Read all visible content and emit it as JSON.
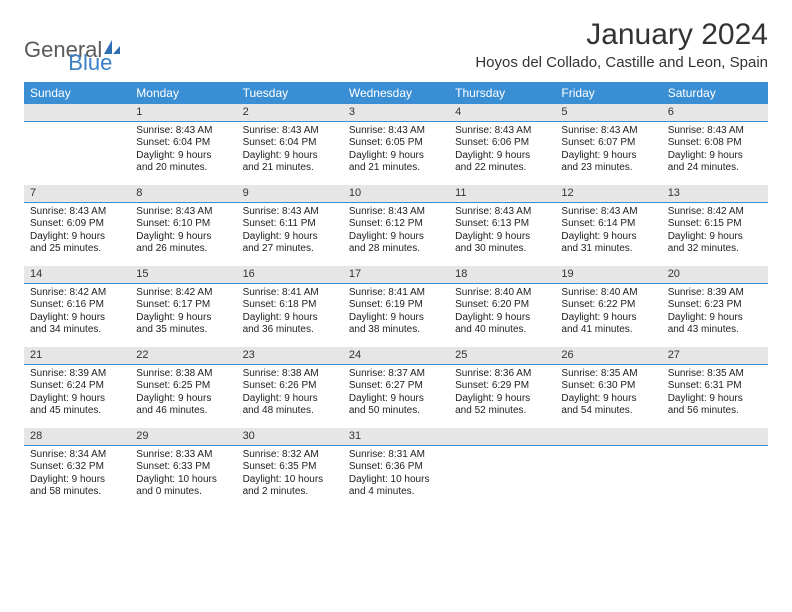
{
  "logo": {
    "text1": "General",
    "text2": "Blue"
  },
  "title": "January 2024",
  "location": "Hoyos del Collado, Castille and Leon, Spain",
  "colors": {
    "header_bg": "#3a8fd4",
    "header_text": "#ffffff",
    "daynum_bg": "#e6e6e6",
    "daynum_border": "#3a8fd4",
    "logo_gray": "#5a5a5a",
    "logo_blue": "#3a7fc4",
    "page_bg": "#ffffff"
  },
  "weekdays": [
    "Sunday",
    "Monday",
    "Tuesday",
    "Wednesday",
    "Thursday",
    "Friday",
    "Saturday"
  ],
  "weeks": [
    [
      null,
      {
        "n": "1",
        "sr": "8:43 AM",
        "ss": "6:04 PM",
        "dl": "9 hours and 20 minutes."
      },
      {
        "n": "2",
        "sr": "8:43 AM",
        "ss": "6:04 PM",
        "dl": "9 hours and 21 minutes."
      },
      {
        "n": "3",
        "sr": "8:43 AM",
        "ss": "6:05 PM",
        "dl": "9 hours and 21 minutes."
      },
      {
        "n": "4",
        "sr": "8:43 AM",
        "ss": "6:06 PM",
        "dl": "9 hours and 22 minutes."
      },
      {
        "n": "5",
        "sr": "8:43 AM",
        "ss": "6:07 PM",
        "dl": "9 hours and 23 minutes."
      },
      {
        "n": "6",
        "sr": "8:43 AM",
        "ss": "6:08 PM",
        "dl": "9 hours and 24 minutes."
      }
    ],
    [
      {
        "n": "7",
        "sr": "8:43 AM",
        "ss": "6:09 PM",
        "dl": "9 hours and 25 minutes."
      },
      {
        "n": "8",
        "sr": "8:43 AM",
        "ss": "6:10 PM",
        "dl": "9 hours and 26 minutes."
      },
      {
        "n": "9",
        "sr": "8:43 AM",
        "ss": "6:11 PM",
        "dl": "9 hours and 27 minutes."
      },
      {
        "n": "10",
        "sr": "8:43 AM",
        "ss": "6:12 PM",
        "dl": "9 hours and 28 minutes."
      },
      {
        "n": "11",
        "sr": "8:43 AM",
        "ss": "6:13 PM",
        "dl": "9 hours and 30 minutes."
      },
      {
        "n": "12",
        "sr": "8:43 AM",
        "ss": "6:14 PM",
        "dl": "9 hours and 31 minutes."
      },
      {
        "n": "13",
        "sr": "8:42 AM",
        "ss": "6:15 PM",
        "dl": "9 hours and 32 minutes."
      }
    ],
    [
      {
        "n": "14",
        "sr": "8:42 AM",
        "ss": "6:16 PM",
        "dl": "9 hours and 34 minutes."
      },
      {
        "n": "15",
        "sr": "8:42 AM",
        "ss": "6:17 PM",
        "dl": "9 hours and 35 minutes."
      },
      {
        "n": "16",
        "sr": "8:41 AM",
        "ss": "6:18 PM",
        "dl": "9 hours and 36 minutes."
      },
      {
        "n": "17",
        "sr": "8:41 AM",
        "ss": "6:19 PM",
        "dl": "9 hours and 38 minutes."
      },
      {
        "n": "18",
        "sr": "8:40 AM",
        "ss": "6:20 PM",
        "dl": "9 hours and 40 minutes."
      },
      {
        "n": "19",
        "sr": "8:40 AM",
        "ss": "6:22 PM",
        "dl": "9 hours and 41 minutes."
      },
      {
        "n": "20",
        "sr": "8:39 AM",
        "ss": "6:23 PM",
        "dl": "9 hours and 43 minutes."
      }
    ],
    [
      {
        "n": "21",
        "sr": "8:39 AM",
        "ss": "6:24 PM",
        "dl": "9 hours and 45 minutes."
      },
      {
        "n": "22",
        "sr": "8:38 AM",
        "ss": "6:25 PM",
        "dl": "9 hours and 46 minutes."
      },
      {
        "n": "23",
        "sr": "8:38 AM",
        "ss": "6:26 PM",
        "dl": "9 hours and 48 minutes."
      },
      {
        "n": "24",
        "sr": "8:37 AM",
        "ss": "6:27 PM",
        "dl": "9 hours and 50 minutes."
      },
      {
        "n": "25",
        "sr": "8:36 AM",
        "ss": "6:29 PM",
        "dl": "9 hours and 52 minutes."
      },
      {
        "n": "26",
        "sr": "8:35 AM",
        "ss": "6:30 PM",
        "dl": "9 hours and 54 minutes."
      },
      {
        "n": "27",
        "sr": "8:35 AM",
        "ss": "6:31 PM",
        "dl": "9 hours and 56 minutes."
      }
    ],
    [
      {
        "n": "28",
        "sr": "8:34 AM",
        "ss": "6:32 PM",
        "dl": "9 hours and 58 minutes."
      },
      {
        "n": "29",
        "sr": "8:33 AM",
        "ss": "6:33 PM",
        "dl": "10 hours and 0 minutes."
      },
      {
        "n": "30",
        "sr": "8:32 AM",
        "ss": "6:35 PM",
        "dl": "10 hours and 2 minutes."
      },
      {
        "n": "31",
        "sr": "8:31 AM",
        "ss": "6:36 PM",
        "dl": "10 hours and 4 minutes."
      },
      null,
      null,
      null
    ]
  ],
  "labels": {
    "sunrise": "Sunrise:",
    "sunset": "Sunset:",
    "daylight": "Daylight:"
  }
}
